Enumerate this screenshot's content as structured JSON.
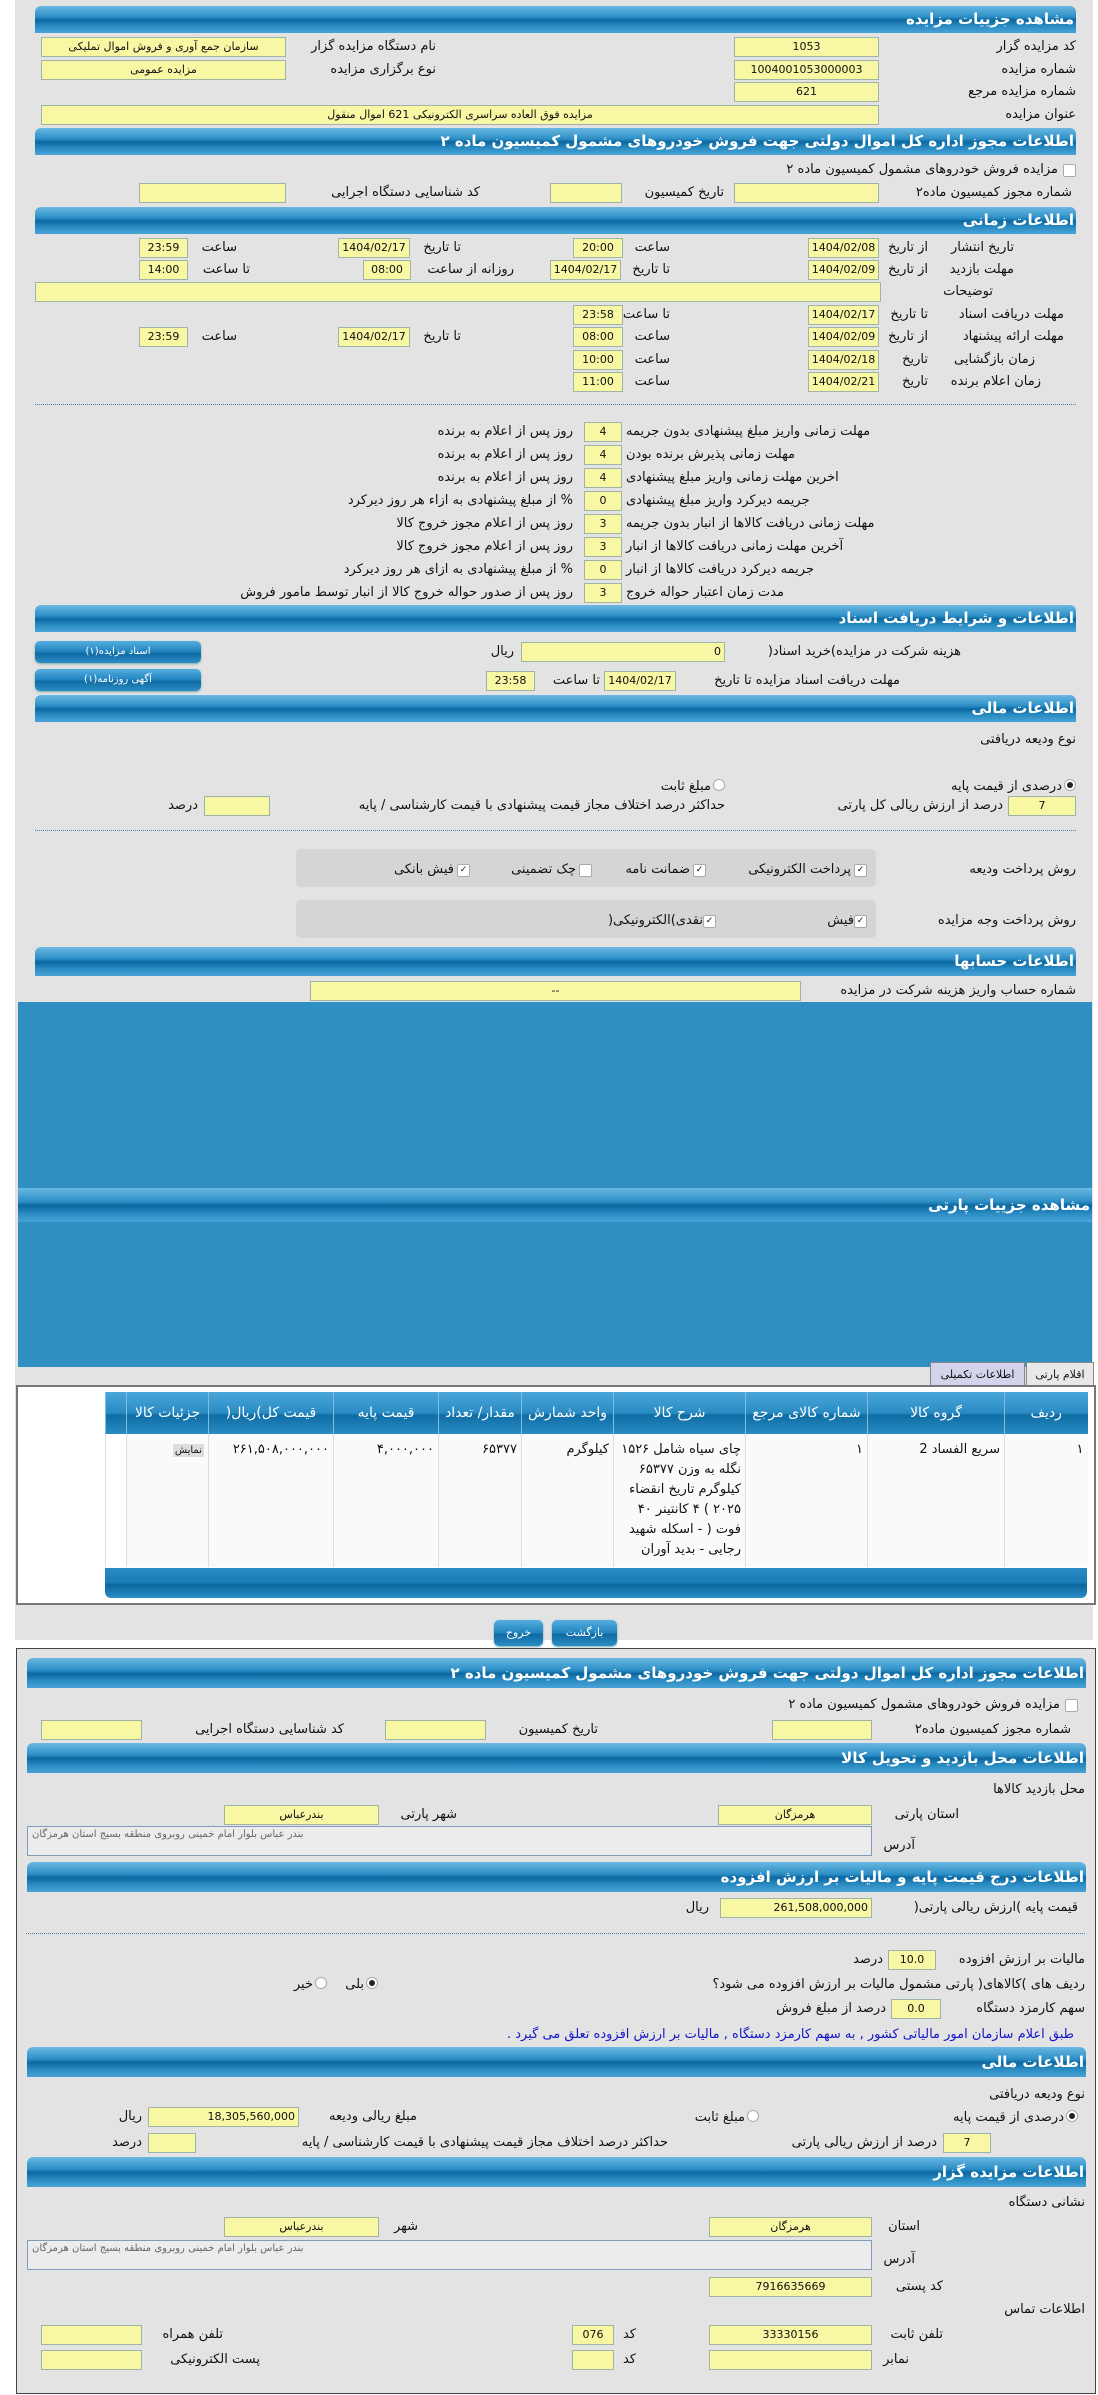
{
  "auction": {
    "title": "مشاهده جزییات مزایده",
    "code_label": "کد مزایده گزار",
    "code": "1053",
    "org_label": "نام دستگاه مزایده گزار",
    "org": "سازمان جمع آوری و فروش اموال تملیکی",
    "number_label": "شماره مزایده",
    "number": "1004001053000003",
    "type_label": "نوع برگزاری مزایده",
    "type": "مزایده عمومی",
    "ref_label": "شماره مزایده مرجع",
    "ref": "621",
    "name_label": "عنوان مزایده",
    "name": "مزایده فوق العاده سراسری الکترونیکی 621 اموال منقول"
  },
  "license": {
    "title": "اطلاعات مجوز اداره کل اموال دولتی جهت فروش خودروهای مشمول کمیسیون ماده ۲",
    "checkbox_label": "مزایده فروش خودروهای مشمول کمیسیون ماده ۲",
    "permit_label": "شماره مجوز کمیسیون ماده۲",
    "date_label": "تاریخ کمیسیون",
    "org_code_label": "کد شناسایی دستگاه اجرایی"
  },
  "time": {
    "title": "اطلاعات زمانی",
    "from_date": "از تاریخ",
    "to_date": "تا تاریخ",
    "date": "تاریخ",
    "hour": "ساعت",
    "to_hour": "تا ساعت",
    "daily_from": "روزانه از ساعت",
    "publish_label": "تاریخ انتشار",
    "publish_from": "1404/02/08",
    "publish_from_time": "20:00",
    "publish_to": "1404/02/17",
    "publish_to_time": "23:59",
    "visit_label": "مهلت بازدید",
    "visit_from": "1404/02/09",
    "visit_to": "1404/02/17",
    "visit_daily_from": "08:00",
    "visit_daily_to": "14:00",
    "desc_label": "توضیحات",
    "desc": "",
    "docs_label": "مهلت دریافت اسناد",
    "docs_to": "1404/02/17",
    "docs_to_time": "23:58",
    "offer_label": "مهلت ارائه پیشنهاد",
    "offer_from": "1404/02/09",
    "offer_from_time": "08:00",
    "offer_to": "1404/02/17",
    "offer_to_time": "23:59",
    "open_label": "زمان بازگشایی",
    "open_date": "1404/02/18",
    "open_time": "10:00",
    "winner_label": "زمان اعلام برنده",
    "winner_date": "1404/02/21",
    "winner_time": "11:00"
  },
  "rules": [
    {
      "label": "مهلت زمانی واریز مبلغ پیشنهادی بدون جریمه",
      "value": "4",
      "suffix": "روز پس از اعلام به برنده"
    },
    {
      "label": "مهلت زمانی پذیرش برنده بودن",
      "value": "4",
      "suffix": "روز پس از اعلام به برنده"
    },
    {
      "label": "اخرین مهلت زمانی واریز مبلغ پیشنهادی",
      "value": "4",
      "suffix": "روز پس از اعلام به برنده"
    },
    {
      "label": "جریمه دیرکرد واریز مبلغ پیشنهادی",
      "value": "0",
      "suffix": "% از مبلغ پیشنهادی به ازاء هر روز دیرکرد"
    },
    {
      "label": "مهلت زمانی دریافت کالاها از انبار بدون جریمه",
      "value": "3",
      "suffix": "روز پس از اعلام مجوز خروج کالا"
    },
    {
      "label": "آخرین مهلت زمانی دریافت کالاها از انبار",
      "value": "3",
      "suffix": "روز پس از اعلام مجوز خروج کالا"
    },
    {
      "label": "جریمه دیرکرد دریافت کالاها از انبار",
      "value": "0",
      "suffix": "% از مبلغ پیشنهادی به ازای هر روز دیرکرد"
    },
    {
      "label": "مدت زمان اعتبار حواله خروج",
      "value": "3",
      "suffix": "روز پس از صدور حواله خروج کالا از انبار توسط مامور فروش"
    }
  ],
  "docs": {
    "title": "اطلاعات و شرایط دریافت اسناد",
    "fee_label": "هزینه شرکت در مزایده)خرید اسناد(",
    "fee": "0",
    "rial": "ریال",
    "deadline_label": "مهلت دریافت اسناد مزایده تا تاریخ",
    "deadline_date": "1404/02/17",
    "to_hour": "تا ساعت",
    "deadline_time": "23:58",
    "btn_docs": "اسناد مزایده(۱)",
    "btn_ad": "آگهی روزنامه(۱)"
  },
  "finance": {
    "title": "اطلاعات مالی",
    "deposit_type_label": "نوع ودیعه دریافتی",
    "opt_percent": "درصدی از قیمت پایه",
    "opt_fixed": "مبلغ ثابت",
    "percent": "7",
    "percent_label": "درصد از ارزش ریالی کل پارتی",
    "max_diff_label": "حداکثر درصد اختلاف مجاز قیمت پیشنهادی با قیمت کارشناسی / پایه",
    "max_diff": "",
    "percent_unit": "درصد",
    "deposit_pay_label": "روش پرداخت ودیعه",
    "deposit_methods": [
      {
        "label": "پرداخت الکترونیکی",
        "checked": true
      },
      {
        "label": "ضمانت نامه",
        "checked": true
      },
      {
        "label": "چک تضمینی",
        "checked": false
      },
      {
        "label": "فیش بانکی",
        "checked": true
      }
    ],
    "auction_pay_label": "روش پرداخت وجه مزایده",
    "auction_methods": [
      {
        "label": "فیش",
        "checked": true
      },
      {
        "label": "نقدی)الکترونیکی(",
        "checked": true
      }
    ]
  },
  "accounts": {
    "title": "اطلاعات حسابها",
    "label": "شماره حساب واریز هزینه شرکت در مزایده",
    "value": "--"
  },
  "party": {
    "title": "مشاهده جزییات پارتی",
    "tabs": [
      "اقلام پارتی",
      "اطلاعات تکمیلی"
    ],
    "columns": [
      "ردیف",
      "گروه کالا",
      "شماره کالای مرجع",
      "شرح کالا",
      "واحد شمارش",
      "مقدار/ تعداد",
      "قیمت پایه",
      "قیمت کل)ریال(",
      "جزئیات کالا"
    ],
    "rows": [
      [
        "۱",
        "سریع الفساد 2",
        "۱",
        "چای سیاه شامل ۱۵۲۶ نگله به وزن ۶۵۳۷۷ کیلوگرم تاریخ انقضاء ۲۰۲۵ ) ۴ کانتینر ۴۰ فوت ( - اسکله شهید رجایی - بدید آوران",
        "کیلوگرم",
        "۶۵۳۷۷",
        "۴,۰۰۰,۰۰۰",
        "۲۶۱,۵۰۸,۰۰۰,۰۰۰",
        "نمایش"
      ]
    ],
    "back": "بازگشت",
    "exit": "خروج"
  },
  "visit": {
    "title": "اطلاعات محل بازدید و تحویل کالا",
    "place_label": "محل بازدید کالاها",
    "province_label": "استان پارتی",
    "province": "هرمزگان",
    "city_label": "شهر پارتی",
    "city": "بندرعباس",
    "address_label": "آدرس",
    "address": "بندر عباس بلوار امام خمینی روبروی منطقه بسیج استان هرمزگان"
  },
  "vat": {
    "title": "اطلاعات درج قیمت پایه و مالیات بر ارزش افزوده",
    "base_label": "قیمت پایه )ارزش ریالی پارتی(",
    "base": "261,508,000,000",
    "rial": "ریال",
    "vat_label": "مالیات بر ارزش افزوده",
    "vat": "10.0",
    "percent": "درصد",
    "subject_label": "ردیف های )کالاهای( پارتی مشمول مالیات بر ارزش افزوده می شود؟",
    "yes": "بلی",
    "no": "خیر",
    "fee_label": "سهم کارمزد دستگاه",
    "fee": "0.0",
    "fee_suffix": "درصد از مبلغ فروش",
    "note": "طبق اعلام سازمان امور مالیاتی کشور , به سهم کارمزد دستگاه , مالیات بر ارزش افزوده تعلق می گیرد ."
  },
  "finance2": {
    "title": "اطلاعات مالی",
    "deposit_type_label": "نوع ودیعه دریافتی",
    "opt_percent": "درصدی از قیمت پایه",
    "opt_fixed": "مبلغ ثابت",
    "amount_label": "مبلغ ریالی ودیعه",
    "amount": "18,305,560,000",
    "rial": "ریال",
    "percent": "7",
    "percent_label": "درصد از ارزش ریالی پارتی",
    "max_diff_label": "حداکثر درصد اختلاف مجاز قیمت پیشنهادی با قیمت کارشناسی / پایه",
    "percent_unit": "درصد"
  },
  "auctioneer": {
    "title": "اطلاعات مزایده گزار",
    "address_title": "نشانی دستگاه",
    "province_label": "استان",
    "province": "هرمزگان",
    "city_label": "شهر",
    "city": "بندرعباس",
    "address_label": "آدرس",
    "address": "بندر عباس بلوار امام خمینی روبروی منطقه بسیج استان هرمزگان",
    "postal_label": "کد پستی",
    "postal": "7916635669",
    "contact_title": "اطلاعات تماس",
    "phone_label": "تلفن ثابت",
    "phone": "33330156",
    "code_label": "کد",
    "phone_code": "076",
    "mobile_label": "تلفن همراه",
    "fax_label": "نمابر",
    "email_label": "پست الکترونیکی"
  }
}
